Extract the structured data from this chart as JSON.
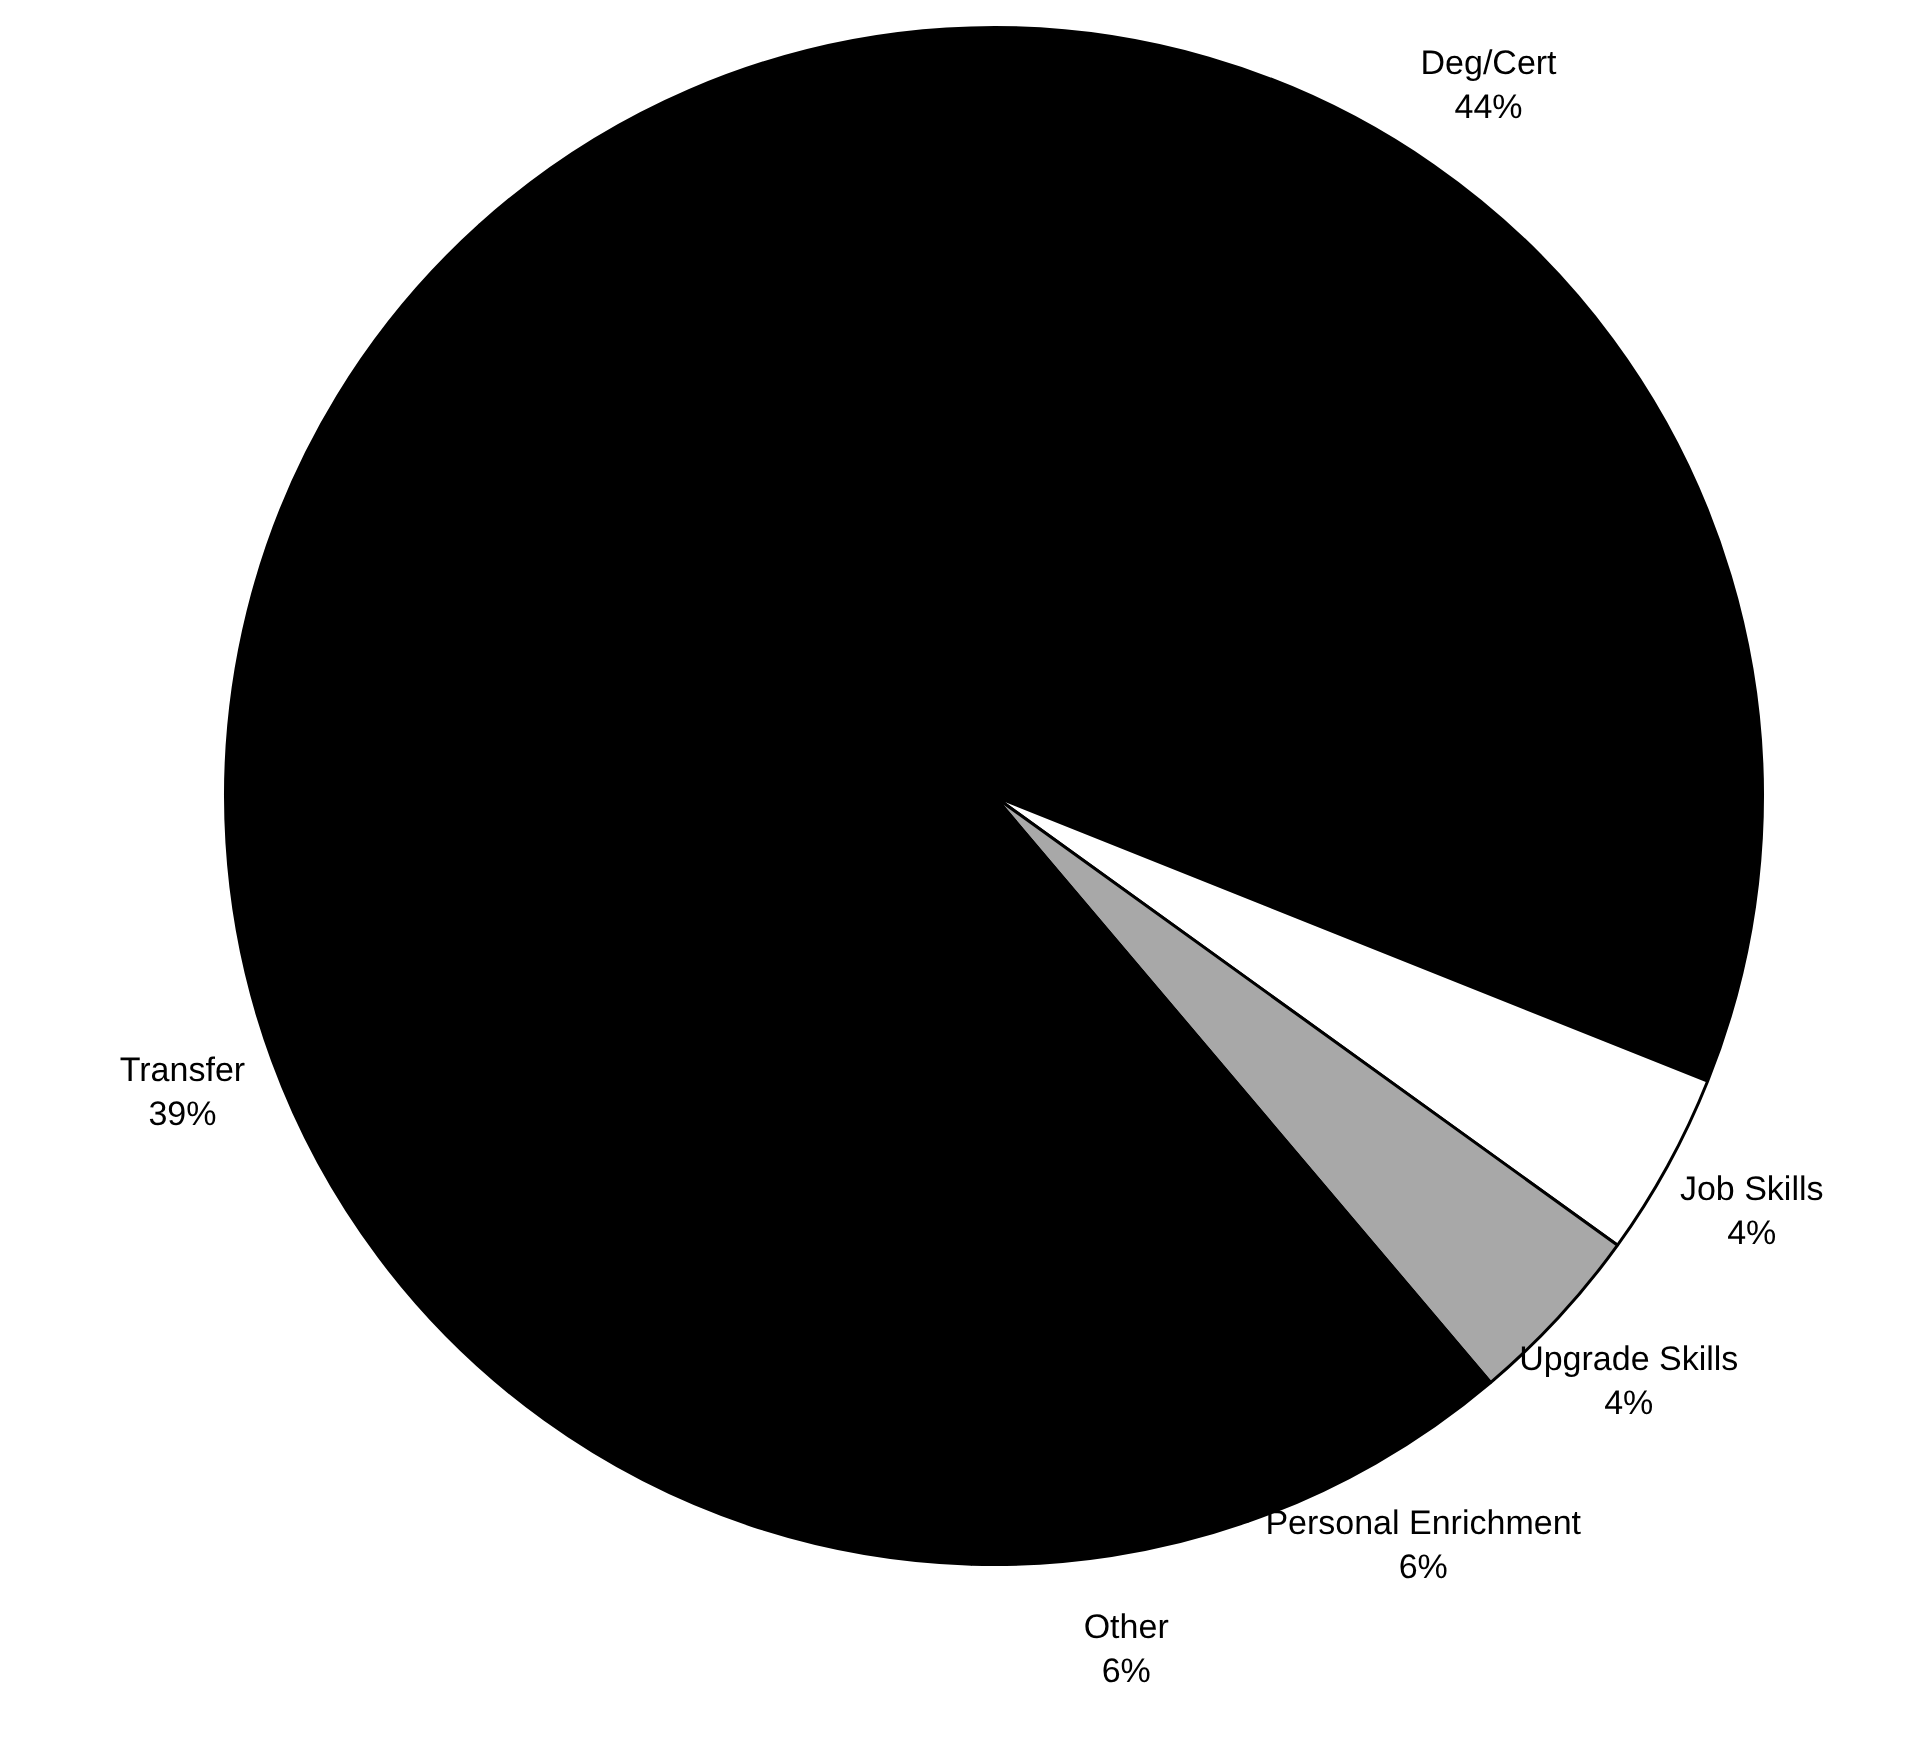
{
  "chart_data": {
    "type": "pie",
    "categories": [
      "Deg/Cert",
      "Job Skills",
      "Upgrade Skills",
      "Personal Enrichment",
      "Other",
      "Transfer"
    ],
    "values": [
      44,
      4,
      4,
      6,
      6,
      39
    ],
    "value_labels": [
      "44%",
      "4%",
      "4%",
      "6%",
      "6%",
      "39%"
    ],
    "colors": [
      "#000000",
      "#ffffff",
      "#a8a8a8",
      "#000000",
      "#000000",
      "#000000"
    ],
    "legend": false
  }
}
